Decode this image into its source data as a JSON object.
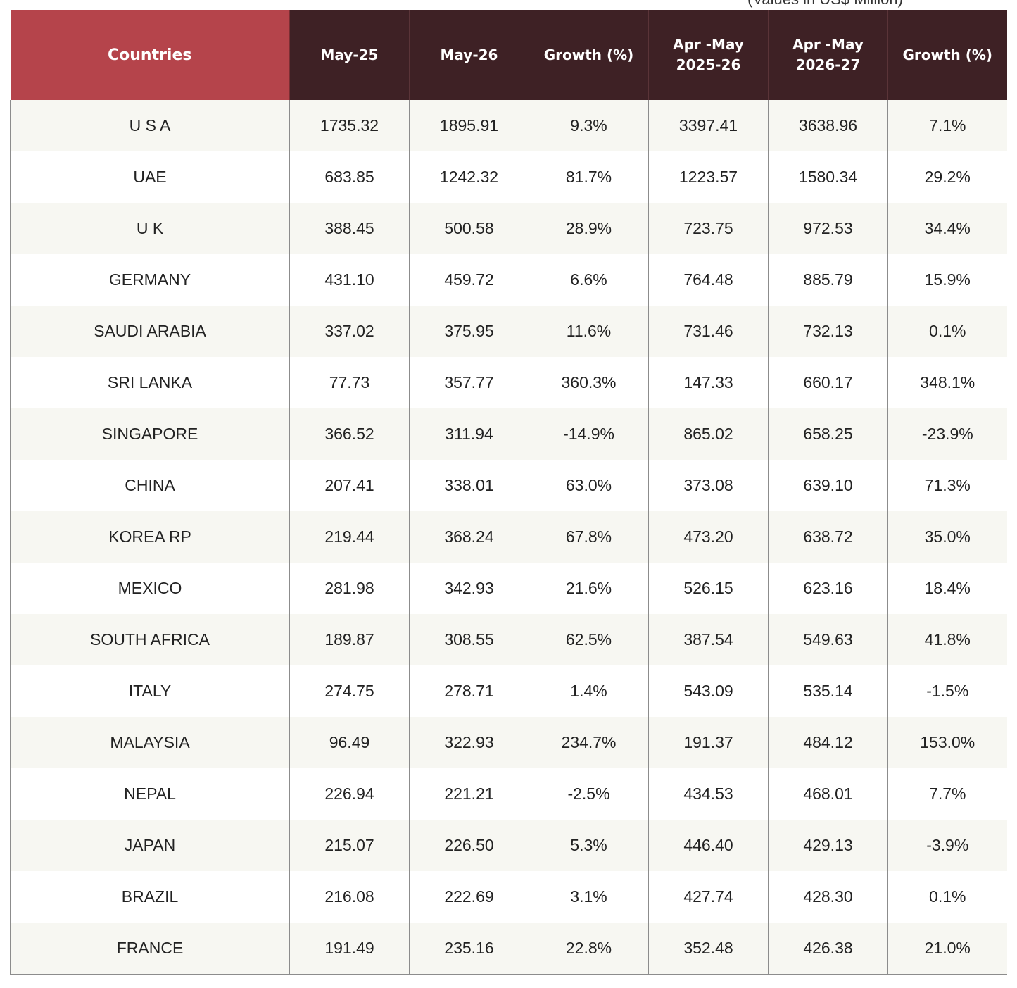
{
  "note": "(Values in US$ Million)",
  "table": {
    "headers": [
      [
        "Countries"
      ],
      [
        "May-25"
      ],
      [
        "May-26"
      ],
      [
        "Growth (%)"
      ],
      [
        "Apr -May",
        "2025-26"
      ],
      [
        "Apr -May",
        "2026-27"
      ],
      [
        "Growth (%)"
      ]
    ],
    "rows": [
      [
        "U S A",
        "1735.32",
        "1895.91",
        "9.3%",
        "3397.41",
        "3638.96",
        "7.1%"
      ],
      [
        "UAE",
        "683.85",
        "1242.32",
        "81.7%",
        "1223.57",
        "1580.34",
        "29.2%"
      ],
      [
        "U K",
        "388.45",
        "500.58",
        "28.9%",
        "723.75",
        "972.53",
        "34.4%"
      ],
      [
        "GERMANY",
        "431.10",
        "459.72",
        "6.6%",
        "764.48",
        "885.79",
        "15.9%"
      ],
      [
        "SAUDI ARABIA",
        "337.02",
        "375.95",
        "11.6%",
        "731.46",
        "732.13",
        "0.1%"
      ],
      [
        "SRI LANKA",
        "77.73",
        "357.77",
        "360.3%",
        "147.33",
        "660.17",
        "348.1%"
      ],
      [
        "SINGAPORE",
        "366.52",
        "311.94",
        "-14.9%",
        "865.02",
        "658.25",
        "-23.9%"
      ],
      [
        "CHINA",
        "207.41",
        "338.01",
        "63.0%",
        "373.08",
        "639.10",
        "71.3%"
      ],
      [
        "KOREA RP",
        "219.44",
        "368.24",
        "67.8%",
        "473.20",
        "638.72",
        "35.0%"
      ],
      [
        "MEXICO",
        "281.98",
        "342.93",
        "21.6%",
        "526.15",
        "623.16",
        "18.4%"
      ],
      [
        "SOUTH AFRICA",
        "189.87",
        "308.55",
        "62.5%",
        "387.54",
        "549.63",
        "41.8%"
      ],
      [
        "ITALY",
        "274.75",
        "278.71",
        "1.4%",
        "543.09",
        "535.14",
        "-1.5%"
      ],
      [
        "MALAYSIA",
        "96.49",
        "322.93",
        "234.7%",
        "191.37",
        "484.12",
        "153.0%"
      ],
      [
        "NEPAL",
        "226.94",
        "221.21",
        "-2.5%",
        "434.53",
        "468.01",
        "7.7%"
      ],
      [
        "JAPAN",
        "215.07",
        "226.50",
        "5.3%",
        "446.40",
        "429.13",
        "-3.9%"
      ],
      [
        "BRAZIL",
        "216.08",
        "222.69",
        "3.1%",
        "427.74",
        "428.30",
        "0.1%"
      ],
      [
        "FRANCE",
        "191.49",
        "235.16",
        "22.8%",
        "352.48",
        "426.38",
        "21.0%"
      ]
    ]
  },
  "colors": {
    "country_header_bg": "#b5444b",
    "header_bg": "#3e2125",
    "row_odd_bg": "#f7f7f2",
    "row_even_bg": "#ffffff"
  }
}
